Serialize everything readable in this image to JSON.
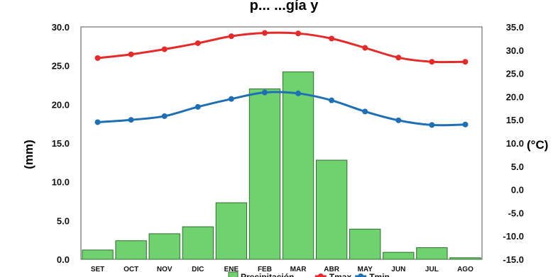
{
  "chart_data": {
    "type": "bar",
    "title": "p... ...gía y",
    "categories": [
      "SET",
      "OCT",
      "NOV",
      "DIC",
      "ENE",
      "FEB",
      "MAR",
      "ABR",
      "MAY",
      "JUN",
      "JUL",
      "AGO"
    ],
    "ylabel": "(mm)",
    "y2label": "(°C)",
    "ylim": [
      0,
      30
    ],
    "y2lim": [
      -15,
      35
    ],
    "yticks": [
      "0.0",
      "5.0",
      "10.0",
      "15.0",
      "20.0",
      "25.0",
      "30.0"
    ],
    "y2ticks": [
      "-15.0",
      "-10.0",
      "-5.0",
      "0.0",
      "5.0",
      "10.0",
      "15.0",
      "20.0",
      "25.0",
      "30.0",
      "35.0"
    ],
    "grid": false,
    "legend_position": "bottom",
    "series": [
      {
        "name": "Precipitación",
        "kind": "bar",
        "axis": "left",
        "color": "#6fd26f",
        "values": [
          1.2,
          2.4,
          3.3,
          4.2,
          7.3,
          22.0,
          24.2,
          12.8,
          3.9,
          0.9,
          1.5,
          0.2
        ]
      },
      {
        "name": "Tmax",
        "kind": "line",
        "axis": "right",
        "color": "#e52a2a",
        "values": [
          28.3,
          29.1,
          30.2,
          31.5,
          33.0,
          33.7,
          33.6,
          32.5,
          30.5,
          28.4,
          27.5,
          27.5
        ]
      },
      {
        "name": "Tmin",
        "kind": "line",
        "axis": "right",
        "color": "#1f6fb5",
        "values": [
          14.5,
          15.0,
          15.8,
          17.8,
          19.5,
          20.9,
          20.7,
          19.2,
          16.8,
          14.9,
          13.9,
          14.0
        ]
      }
    ]
  }
}
